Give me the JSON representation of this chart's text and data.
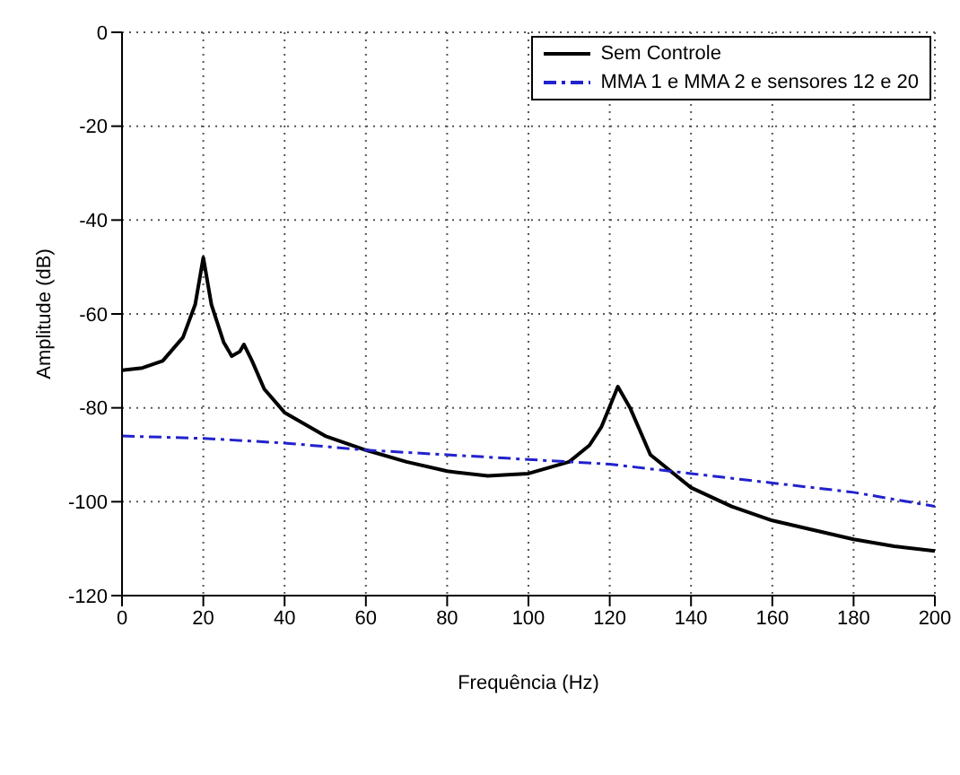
{
  "chart_data": {
    "type": "line",
    "xlabel": "Frequência (Hz)",
    "ylabel": "Amplitude (dB)",
    "xlim": [
      0,
      200
    ],
    "xticks": [
      0,
      20,
      40,
      60,
      80,
      100,
      120,
      140,
      160,
      180,
      200
    ],
    "ylim": [
      -120,
      0
    ],
    "yticks": [
      -120,
      -100,
      -80,
      -60,
      -40,
      -20,
      0
    ],
    "grid": true,
    "legend": "top right",
    "marker": "none",
    "series": [
      {
        "name": "Sem Controle",
        "color": "#000000",
        "line_style": "solid",
        "x": [
          0,
          5,
          10,
          15,
          18,
          20,
          22,
          25,
          27,
          29,
          30,
          32,
          35,
          40,
          50,
          60,
          70,
          80,
          90,
          100,
          110,
          115,
          118,
          122,
          125,
          128,
          130,
          140,
          150,
          160,
          170,
          180,
          190,
          200
        ],
        "values": [
          -72,
          -71.5,
          -70,
          -65,
          -58,
          -48,
          -58,
          -66,
          -69,
          -68,
          -66.5,
          -70,
          -76,
          -81,
          -86,
          -89,
          -91.5,
          -93.5,
          -94.5,
          -94,
          -91.5,
          -88,
          -84,
          -75.5,
          -80,
          -86,
          -90,
          -97,
          -101,
          -104,
          -106,
          -108,
          -109.5,
          -110.5
        ]
      },
      {
        "name": "MMA 1 e MMA 2 e sensores 12 e 20",
        "color": "#2222cc",
        "line_style": "dashed",
        "x": [
          0,
          20,
          40,
          60,
          80,
          100,
          120,
          140,
          160,
          180,
          200
        ],
        "values": [
          -86,
          -86.5,
          -87.5,
          -89,
          -90,
          -91,
          -92,
          -94,
          -96,
          -98,
          -101
        ]
      }
    ]
  }
}
